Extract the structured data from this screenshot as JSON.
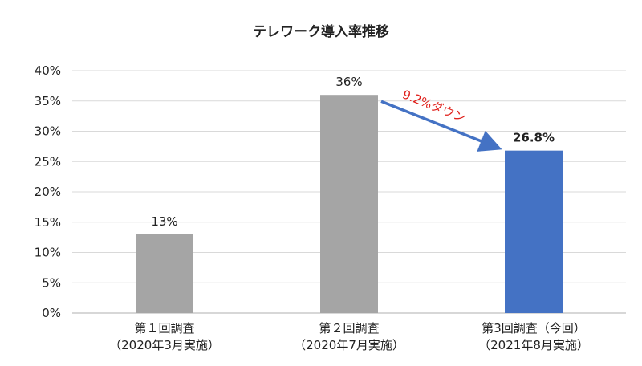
{
  "chart_data": {
    "type": "bar",
    "title": "テレワーク導入率推移",
    "categories": [
      [
        "第１回調査",
        "（2020年3月実施）"
      ],
      [
        "第２回調査",
        "（2020年7月実施）"
      ],
      [
        "第3回調査（今回）",
        "（2021年8月実施）"
      ]
    ],
    "values": [
      13,
      36,
      26.8
    ],
    "data_labels": [
      "13%",
      "36%",
      "26.8%"
    ],
    "ylim": [
      0,
      40
    ],
    "yticks": [
      "0%",
      "5%",
      "10%",
      "15%",
      "20%",
      "25%",
      "30%",
      "35%",
      "40%"
    ],
    "grid": true,
    "legend": "none",
    "annotation": {
      "text": "9.2%ダウン",
      "from_category": 1,
      "to_category": 2
    }
  },
  "colors": {
    "bar": "#a5a5a5",
    "bar_highlight": "#4472c4",
    "arrow": "#4472c4",
    "highlight_label": "#e0201b",
    "annotation": "#e0201b"
  },
  "highlight_index": 2
}
